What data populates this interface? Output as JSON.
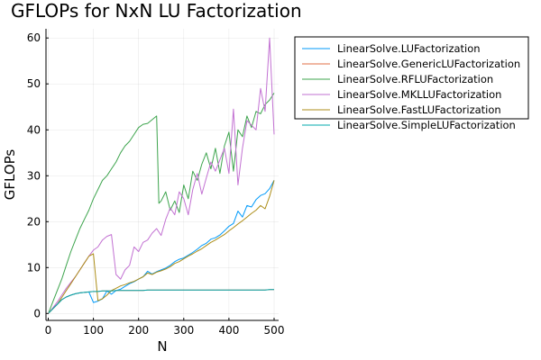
{
  "chart_data": {
    "type": "line",
    "title": "GFLOPs for NxN LU Factorization",
    "xlabel": "N",
    "ylabel": "GFLOPs",
    "xlim": [
      -5,
      510
    ],
    "ylim": [
      -1.5,
      62
    ],
    "xticks": [
      0,
      100,
      200,
      300,
      400,
      500
    ],
    "yticks": [
      0,
      10,
      20,
      30,
      40,
      50,
      60
    ],
    "grid": true,
    "legend_position": "top-right",
    "series": [
      {
        "name": "LinearSolve.LUFactorization",
        "color": "#009AFA",
        "x": [
          1,
          10,
          20,
          30,
          40,
          50,
          60,
          70,
          80,
          90,
          100,
          110,
          120,
          130,
          140,
          150,
          160,
          170,
          180,
          190,
          200,
          210,
          220,
          230,
          240,
          250,
          260,
          270,
          280,
          290,
          300,
          310,
          320,
          330,
          340,
          350,
          360,
          370,
          380,
          390,
          400,
          410,
          420,
          430,
          440,
          450,
          460,
          470,
          480,
          490,
          500
        ],
        "y": [
          0.1,
          1.0,
          2.0,
          3.0,
          3.6,
          4.0,
          4.3,
          4.5,
          4.6,
          4.7,
          2.4,
          2.7,
          3.2,
          4.9,
          4.2,
          5.0,
          5.3,
          5.9,
          6.5,
          6.9,
          7.5,
          8.0,
          9.2,
          8.6,
          9.1,
          9.5,
          9.9,
          10.5,
          11.3,
          11.8,
          12.1,
          12.7,
          13.3,
          14.0,
          14.8,
          15.3,
          16.2,
          16.5,
          17.1,
          18.0,
          19.0,
          19.6,
          22.3,
          21.0,
          23.5,
          23.2,
          24.8,
          25.7,
          26.1,
          27.2,
          29.0
        ]
      },
      {
        "name": "LinearSolve.GenericLUFactorization",
        "color": "#E26F46",
        "x": [
          1,
          10,
          20,
          30,
          40,
          50,
          60,
          70,
          80,
          90,
          100,
          110,
          120,
          130,
          140,
          150,
          160,
          170,
          180,
          190,
          200,
          210,
          220,
          230,
          240,
          250,
          260,
          270,
          280,
          290,
          300,
          310,
          320,
          330,
          340,
          350,
          360,
          370,
          380,
          390,
          400,
          410,
          420,
          430,
          440,
          450,
          460,
          470,
          480,
          490,
          500
        ],
        "y": [
          0.1,
          1.0,
          2.0,
          3.0,
          3.6,
          4.0,
          4.3,
          4.5,
          4.6,
          4.7,
          4.8,
          4.8,
          4.9,
          4.9,
          4.9,
          5.0,
          5.0,
          5.0,
          5.0,
          5.0,
          5.0,
          5.0,
          5.1,
          5.1,
          5.1,
          5.1,
          5.1,
          5.1,
          5.1,
          5.1,
          5.1,
          5.1,
          5.1,
          5.1,
          5.1,
          5.1,
          5.1,
          5.1,
          5.1,
          5.1,
          5.1,
          5.1,
          5.1,
          5.1,
          5.1,
          5.1,
          5.1,
          5.1,
          5.1,
          5.2,
          5.2
        ]
      },
      {
        "name": "LinearSolve.RFLUFactorization",
        "color": "#3DA44D",
        "x": [
          1,
          10,
          20,
          30,
          40,
          50,
          60,
          70,
          80,
          90,
          100,
          110,
          120,
          130,
          140,
          150,
          160,
          170,
          180,
          190,
          200,
          210,
          220,
          230,
          240,
          245,
          250,
          260,
          270,
          280,
          290,
          300,
          310,
          320,
          330,
          340,
          350,
          360,
          370,
          380,
          390,
          400,
          410,
          420,
          430,
          440,
          450,
          460,
          470,
          480,
          490,
          500
        ],
        "y": [
          0.2,
          2.5,
          5.0,
          7.5,
          10.5,
          13.5,
          16.0,
          18.5,
          20.5,
          22.5,
          25.0,
          27.0,
          29.0,
          30.0,
          31.5,
          33.0,
          35.0,
          36.5,
          37.5,
          39.0,
          40.5,
          41.2,
          41.4,
          42.2,
          43.0,
          24.0,
          24.5,
          26.5,
          22.5,
          24.5,
          22.0,
          28.0,
          25.0,
          31.0,
          29.0,
          32.5,
          35.0,
          31.5,
          36.0,
          30.5,
          36.5,
          39.5,
          31.0,
          40.0,
          38.5,
          43.0,
          40.5,
          44.0,
          43.5,
          45.5,
          46.5,
          48.0
        ]
      },
      {
        "name": "LinearSolve.MKLLUFactorization",
        "color": "#C271D2",
        "x": [
          1,
          10,
          20,
          30,
          40,
          50,
          60,
          70,
          80,
          90,
          100,
          110,
          120,
          130,
          140,
          150,
          160,
          170,
          180,
          190,
          200,
          210,
          220,
          230,
          240,
          250,
          260,
          270,
          280,
          290,
          300,
          310,
          320,
          330,
          340,
          350,
          360,
          370,
          380,
          390,
          400,
          410,
          420,
          430,
          440,
          450,
          460,
          470,
          480,
          490,
          500
        ],
        "y": [
          0.1,
          1.2,
          2.5,
          4.0,
          5.5,
          6.8,
          8.0,
          9.5,
          11.0,
          12.5,
          13.8,
          14.5,
          16.0,
          16.8,
          17.2,
          8.5,
          7.5,
          9.5,
          10.5,
          14.5,
          13.5,
          15.5,
          16.0,
          17.5,
          18.5,
          17.0,
          20.5,
          23.0,
          21.5,
          26.5,
          25.0,
          21.5,
          27.0,
          30.5,
          26.0,
          29.5,
          33.0,
          31.0,
          33.5,
          36.0,
          30.5,
          44.5,
          28.0,
          36.0,
          42.0,
          41.0,
          40.0,
          49.0,
          44.0,
          60.0,
          39.0
        ]
      },
      {
        "name": "LinearSolve.FastLUFactorization",
        "color": "#AC8D18",
        "x": [
          1,
          10,
          20,
          30,
          40,
          50,
          60,
          70,
          80,
          90,
          100,
          110,
          120,
          130,
          140,
          150,
          160,
          170,
          180,
          190,
          200,
          210,
          220,
          230,
          240,
          250,
          260,
          270,
          280,
          290,
          300,
          310,
          320,
          330,
          340,
          350,
          360,
          370,
          380,
          390,
          400,
          410,
          420,
          430,
          440,
          450,
          460,
          470,
          480,
          490,
          500
        ],
        "y": [
          0.1,
          1.0,
          2.0,
          3.5,
          5.0,
          6.5,
          8.0,
          9.5,
          11.0,
          12.5,
          13.0,
          2.8,
          3.2,
          4.0,
          5.0,
          5.5,
          6.0,
          6.3,
          6.7,
          7.0,
          7.5,
          8.0,
          8.8,
          8.5,
          9.0,
          9.3,
          9.7,
          10.2,
          10.9,
          11.3,
          11.9,
          12.5,
          13.0,
          13.6,
          14.1,
          14.8,
          15.5,
          16.0,
          16.6,
          17.2,
          18.0,
          18.7,
          19.5,
          20.2,
          21.0,
          21.8,
          22.5,
          23.5,
          22.8,
          25.5,
          29.0
        ]
      },
      {
        "name": "LinearSolve.SimpleLUFactorization",
        "color": "#00A9AD",
        "x": [
          1,
          10,
          20,
          30,
          40,
          50,
          60,
          70,
          80,
          90,
          100,
          110,
          120,
          130,
          140,
          150,
          160,
          170,
          180,
          190,
          200,
          210,
          220,
          230,
          240,
          250,
          260,
          270,
          280,
          290,
          300,
          310,
          320,
          330,
          340,
          350,
          360,
          370,
          380,
          390,
          400,
          410,
          420,
          430,
          440,
          450,
          460,
          470,
          480,
          490,
          500
        ],
        "y": [
          0.1,
          1.0,
          2.0,
          3.0,
          3.6,
          4.0,
          4.3,
          4.5,
          4.6,
          4.7,
          4.8,
          4.8,
          4.9,
          4.9,
          4.9,
          5.0,
          5.0,
          5.0,
          5.0,
          5.0,
          5.0,
          5.0,
          5.1,
          5.1,
          5.1,
          5.1,
          5.1,
          5.1,
          5.1,
          5.1,
          5.1,
          5.1,
          5.1,
          5.1,
          5.1,
          5.1,
          5.1,
          5.1,
          5.1,
          5.1,
          5.1,
          5.1,
          5.1,
          5.1,
          5.1,
          5.1,
          5.1,
          5.1,
          5.1,
          5.2,
          5.2
        ]
      }
    ]
  }
}
